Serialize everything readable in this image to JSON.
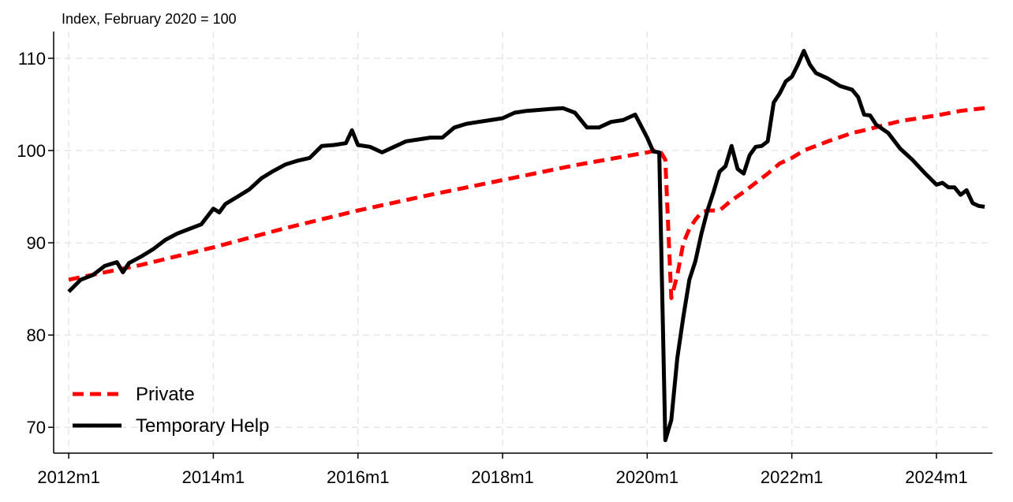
{
  "chart_data": {
    "type": "line",
    "title": "Index, February 2020 = 100",
    "xlim": [
      -2.5,
      153.3
    ],
    "ylim": [
      67.2,
      112.9
    ],
    "xticks": [
      {
        "value": 0,
        "label": "2012m1"
      },
      {
        "value": 24,
        "label": "2014m1"
      },
      {
        "value": 48,
        "label": "2016m1"
      },
      {
        "value": 72,
        "label": "2018m1"
      },
      {
        "value": 96,
        "label": "2020m1"
      },
      {
        "value": 120,
        "label": "2022m1"
      },
      {
        "value": 144,
        "label": "2024m1"
      }
    ],
    "yticks": [
      70,
      80,
      90,
      100,
      110
    ],
    "grid": true,
    "legend": "lower-left",
    "series": [
      {
        "name": "Private",
        "color": "#ff0000",
        "dash": true,
        "x": [
          0,
          12,
          24,
          36,
          48,
          60,
          72,
          84,
          96,
          98,
          99,
          100,
          101,
          102,
          103,
          104,
          105,
          106,
          108,
          110,
          112,
          114,
          116,
          118,
          120,
          122,
          126,
          130,
          132,
          138,
          144,
          148,
          152
        ],
        "values": [
          86.0,
          87.6,
          89.5,
          91.6,
          93.5,
          95.2,
          96.8,
          98.4,
          99.8,
          100.1,
          99.0,
          84.0,
          86.5,
          90.0,
          91.5,
          92.5,
          93.3,
          93.5,
          93.5,
          94.6,
          95.5,
          96.5,
          97.5,
          98.6,
          99.2,
          100.0,
          101.0,
          101.9,
          102.2,
          103.2,
          103.8,
          104.3,
          104.6
        ]
      },
      {
        "name": "Temporary Help",
        "color": "#000000",
        "dash": false,
        "x": [
          0,
          2,
          4,
          6,
          8,
          9,
          10,
          12,
          14,
          16,
          18,
          20,
          22,
          24,
          25,
          26,
          28,
          30,
          32,
          34,
          36,
          38,
          40,
          42,
          44,
          46,
          47,
          48,
          50,
          52,
          54,
          56,
          58,
          60,
          62,
          64,
          66,
          68,
          70,
          72,
          74,
          76,
          78,
          80,
          82,
          84,
          86,
          88,
          90,
          92,
          94,
          96,
          97,
          98,
          99,
          100,
          101,
          102,
          103,
          104,
          105,
          106,
          107,
          108,
          109,
          110,
          111,
          112,
          113,
          114,
          115,
          116,
          117,
          118,
          119,
          120,
          121,
          122,
          123,
          124,
          126,
          128,
          130,
          131,
          132,
          133,
          134,
          136,
          138,
          140,
          142,
          144,
          145,
          146,
          147,
          148,
          149,
          150,
          151,
          152
        ],
        "values": [
          84.7,
          86.0,
          86.5,
          87.5,
          87.9,
          86.8,
          87.8,
          88.5,
          89.3,
          90.3,
          91.0,
          91.5,
          92.0,
          93.7,
          93.3,
          94.2,
          95.0,
          95.8,
          97.0,
          97.8,
          98.5,
          98.9,
          99.2,
          100.5,
          100.6,
          100.8,
          102.2,
          100.6,
          100.4,
          99.8,
          100.4,
          101.0,
          101.2,
          101.4,
          101.4,
          102.5,
          102.9,
          103.1,
          103.3,
          103.5,
          104.1,
          104.3,
          104.4,
          104.5,
          104.6,
          104.1,
          102.5,
          102.5,
          103.1,
          103.3,
          103.9,
          101.4,
          99.9,
          99.8,
          68.6,
          70.8,
          77.5,
          82.0,
          86.0,
          88.0,
          91.0,
          93.5,
          95.5,
          97.7,
          98.3,
          100.5,
          98.0,
          97.5,
          99.5,
          100.4,
          100.5,
          101.0,
          105.2,
          106.2,
          107.5,
          108.0,
          109.3,
          110.8,
          109.3,
          108.4,
          107.8,
          107.0,
          106.6,
          105.8,
          103.9,
          103.8,
          102.8,
          101.9,
          100.2,
          99.0,
          97.6,
          96.3,
          96.5,
          96.0,
          96.0,
          95.2,
          95.7,
          94.3,
          94.0,
          93.9
        ]
      }
    ]
  }
}
